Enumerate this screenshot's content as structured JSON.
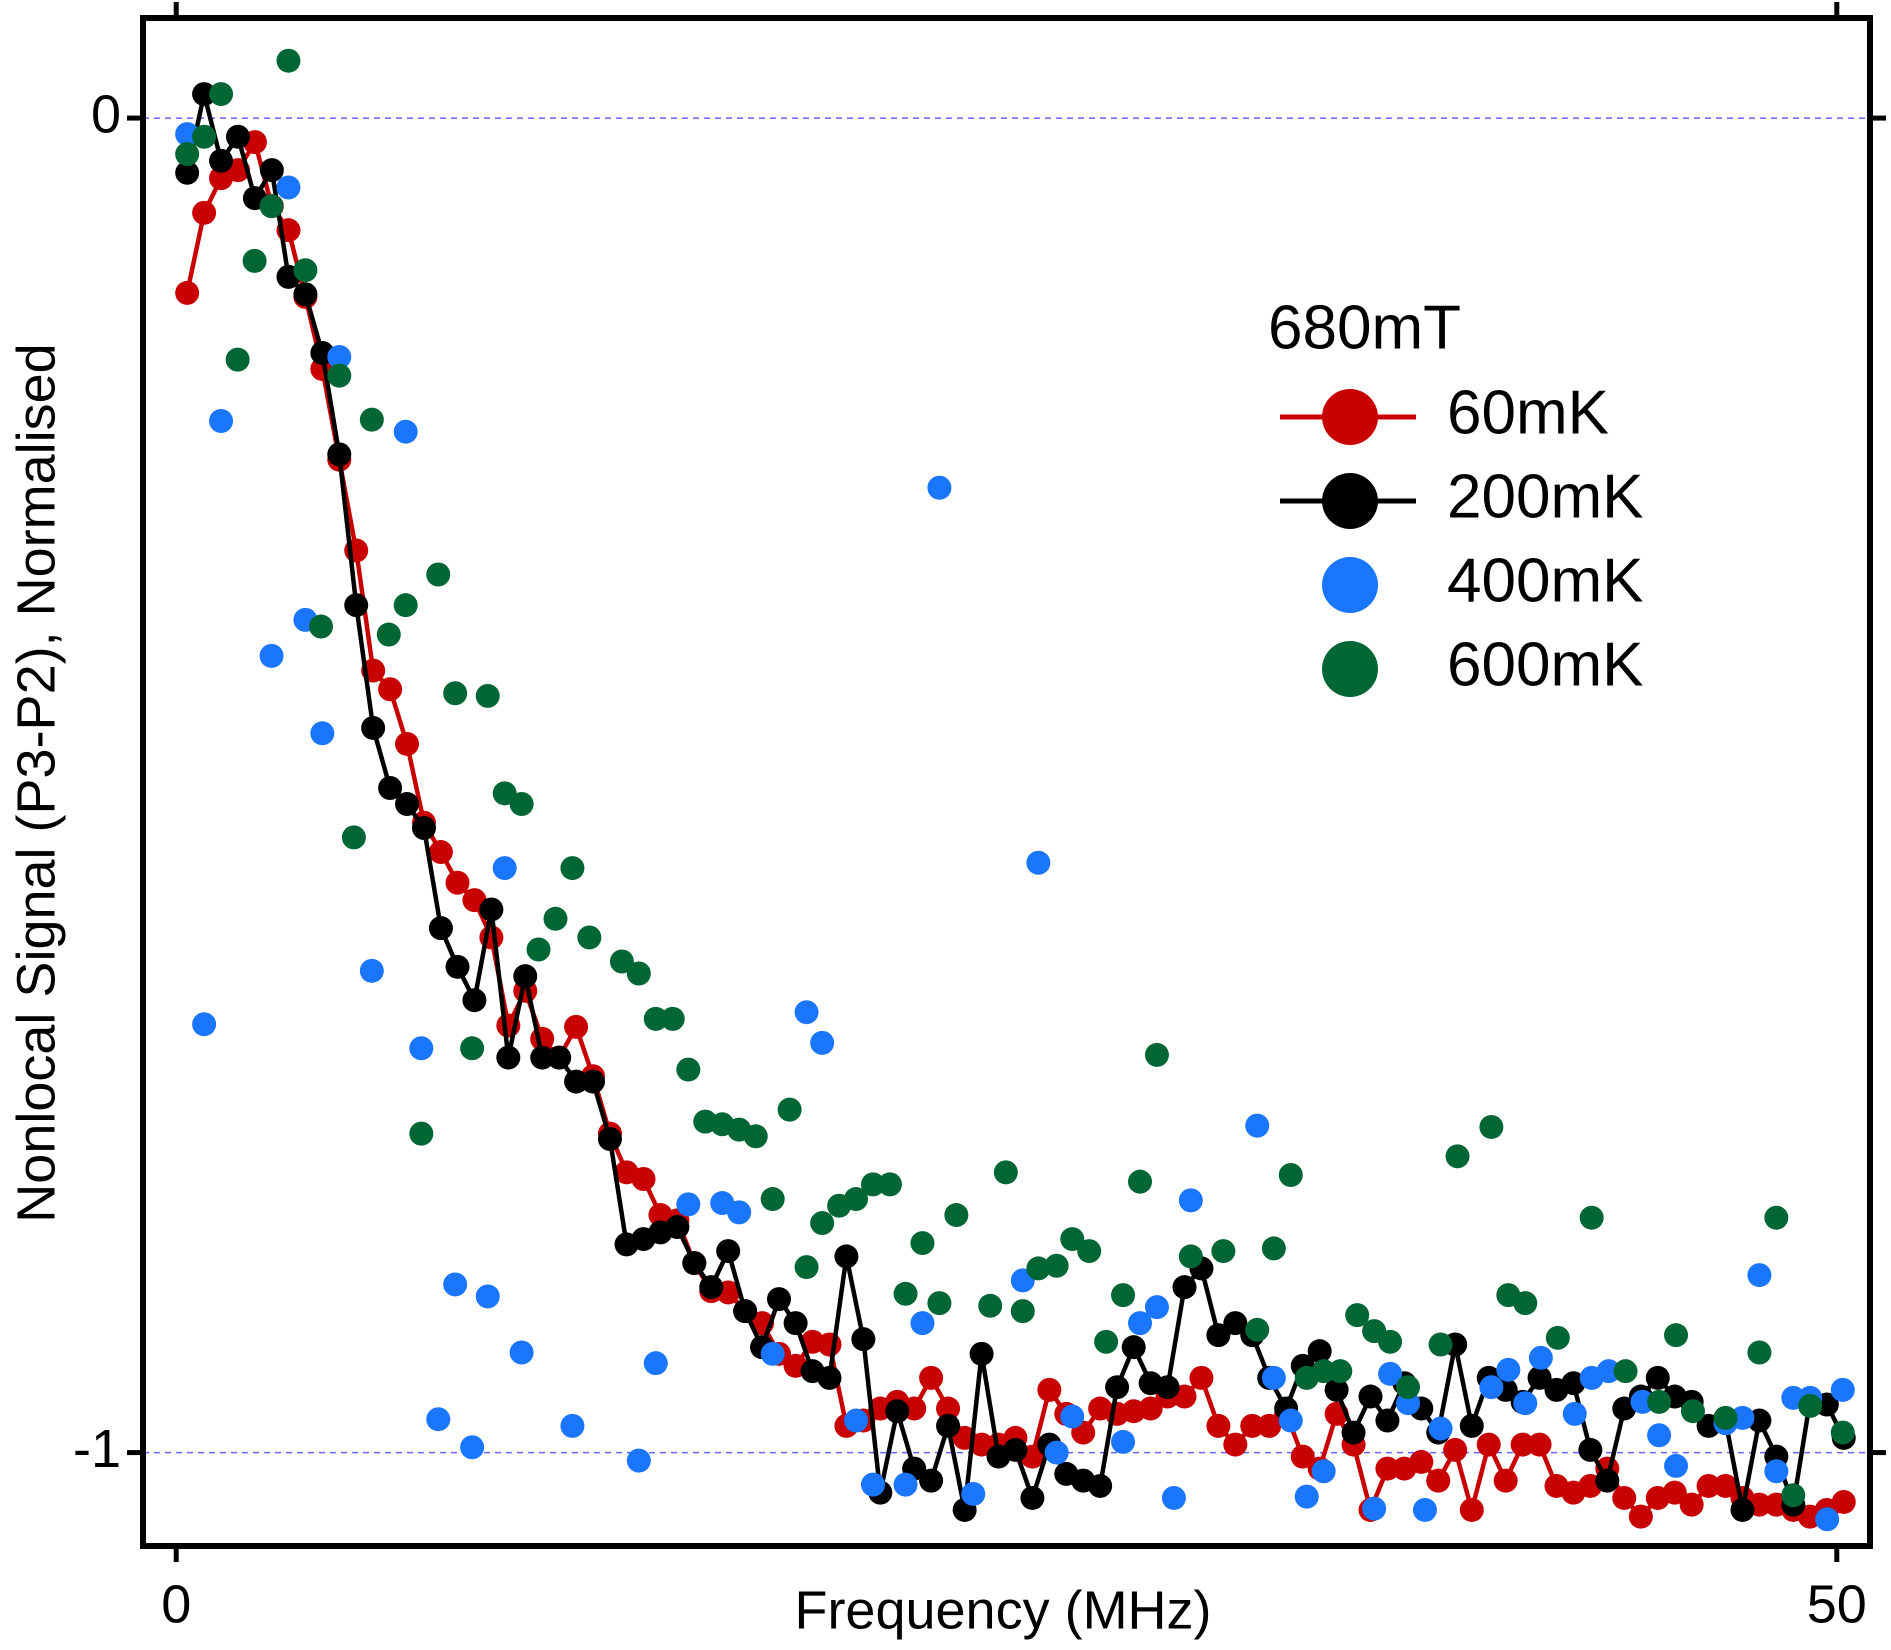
{
  "chart_data": {
    "type": "line",
    "xlabel": "Frequency (MHz)",
    "ylabel": "Nonlocal Signal (P3-P2), Normalised",
    "legend_title": "680mT",
    "legend_position": "upper right",
    "xlim": [
      -1,
      51
    ],
    "xticks": [
      0,
      50
    ],
    "ylim": [
      -1.07,
      0.075
    ],
    "yticks": [
      0,
      -1
    ],
    "grid": true,
    "series": [
      {
        "name": "60mK",
        "color": "#c80000",
        "mode": "lines+markers",
        "x": [
          0.33,
          0.84,
          1.35,
          1.86,
          2.37,
          2.88,
          3.38,
          3.89,
          4.4,
          4.91,
          5.42,
          5.93,
          6.44,
          6.95,
          7.46,
          7.97,
          8.47,
          8.98,
          9.49,
          10.0,
          10.51,
          11.02,
          11.53,
          12.04,
          12.55,
          13.06,
          13.56,
          14.07,
          14.58,
          15.09,
          15.6,
          16.11,
          16.62,
          17.13,
          17.64,
          18.15,
          18.65,
          19.16,
          19.67,
          20.18,
          20.69,
          21.2,
          21.71,
          22.22,
          22.73,
          23.24,
          23.74,
          24.25,
          24.76,
          25.27,
          25.78,
          26.29,
          26.8,
          27.31,
          27.82,
          28.33,
          28.83,
          29.34,
          29.85,
          30.36,
          30.87,
          31.38,
          31.89,
          32.4,
          32.91,
          33.42,
          33.92,
          34.43,
          34.94,
          35.45,
          35.96,
          36.47,
          36.98,
          37.49,
          38.0,
          38.51,
          39.01,
          39.52,
          40.03,
          40.54,
          41.05,
          41.56,
          42.07,
          42.58,
          43.09,
          43.6,
          44.1,
          44.61,
          45.12,
          45.63,
          46.14,
          46.65,
          47.16,
          47.67,
          48.18,
          48.69,
          49.19,
          49.7,
          50.21
        ],
        "values": [
          -0.131,
          -0.071,
          -0.045,
          -0.039,
          -0.018,
          -0.066,
          -0.084,
          -0.134,
          -0.188,
          -0.256,
          -0.324,
          -0.414,
          -0.428,
          -0.469,
          -0.528,
          -0.55,
          -0.573,
          -0.586,
          -0.614,
          -0.68,
          -0.654,
          -0.69,
          -0.704,
          -0.681,
          -0.718,
          -0.761,
          -0.79,
          -0.795,
          -0.822,
          -0.826,
          -0.858,
          -0.879,
          -0.88,
          -0.894,
          -0.903,
          -0.926,
          -0.935,
          -0.917,
          -0.919,
          -0.98,
          -0.976,
          -0.967,
          -0.962,
          -0.967,
          -0.944,
          -0.967,
          -0.989,
          -0.994,
          -0.994,
          -0.989,
          -1.003,
          -0.953,
          -0.971,
          -0.985,
          -0.967,
          -0.971,
          -0.969,
          -0.967,
          -0.958,
          -0.958,
          -0.944,
          -0.98,
          -0.994,
          -0.98,
          -0.98,
          -0.971,
          -1.003,
          -1.012,
          -0.971,
          -0.994,
          -1.043,
          -1.012,
          -1.012,
          -1.007,
          -1.021,
          -0.998,
          -1.043,
          -0.994,
          -1.021,
          -0.994,
          -0.994,
          -1.025,
          -1.03,
          -1.025,
          -1.012,
          -1.034,
          -1.048,
          -1.034,
          -1.03,
          -1.039,
          -1.025,
          -1.025,
          -1.034,
          -1.039,
          -1.039,
          -1.043,
          -1.048,
          -1.043,
          -1.037
        ]
      },
      {
        "name": "200mK",
        "color": "#000000",
        "mode": "lines+markers",
        "x": [
          0.33,
          0.84,
          1.35,
          1.86,
          2.37,
          2.88,
          3.38,
          3.89,
          4.4,
          4.91,
          5.42,
          5.93,
          6.44,
          6.95,
          7.46,
          7.97,
          8.47,
          8.98,
          9.49,
          10.0,
          10.51,
          11.02,
          11.53,
          12.04,
          12.55,
          13.06,
          13.56,
          14.07,
          14.58,
          15.09,
          15.6,
          16.11,
          16.62,
          17.13,
          17.64,
          18.15,
          18.65,
          19.16,
          19.67,
          20.18,
          20.69,
          21.2,
          21.71,
          22.22,
          22.73,
          23.24,
          23.74,
          24.25,
          24.76,
          25.27,
          25.78,
          26.29,
          26.8,
          27.31,
          27.82,
          28.33,
          28.83,
          29.34,
          29.85,
          30.36,
          30.87,
          31.38,
          31.89,
          32.4,
          32.91,
          33.42,
          33.92,
          34.43,
          34.94,
          35.45,
          35.96,
          36.47,
          36.98,
          37.49,
          38.0,
          38.51,
          39.01,
          39.52,
          40.03,
          40.54,
          41.05,
          41.56,
          42.07,
          42.58,
          43.09,
          43.6,
          44.1,
          44.61,
          45.12,
          45.63,
          46.14,
          46.65,
          47.16,
          47.67,
          48.18,
          48.69,
          49.19,
          49.7,
          50.21
        ],
        "values": [
          -0.041,
          0.018,
          -0.032,
          -0.014,
          -0.06,
          -0.039,
          -0.119,
          -0.132,
          -0.176,
          -0.252,
          -0.365,
          -0.457,
          -0.502,
          -0.514,
          -0.532,
          -0.607,
          -0.636,
          -0.661,
          -0.593,
          -0.704,
          -0.643,
          -0.704,
          -0.704,
          -0.722,
          -0.722,
          -0.765,
          -0.844,
          -0.84,
          -0.835,
          -0.831,
          -0.858,
          -0.876,
          -0.849,
          -0.894,
          -0.921,
          -0.885,
          -0.903,
          -0.939,
          -0.944,
          -0.853,
          -0.915,
          -1.03,
          -0.969,
          -1.012,
          -1.021,
          -0.98,
          -1.043,
          -0.926,
          -1.003,
          -0.998,
          -1.034,
          -0.994,
          -1.016,
          -1.021,
          -1.025,
          -0.951,
          -0.921,
          -0.948,
          -0.951,
          -0.876,
          -0.862,
          -0.912,
          -0.903,
          -0.912,
          -0.944,
          -0.967,
          -0.935,
          -0.924,
          -0.953,
          -0.985,
          -0.958,
          -0.976,
          -0.948,
          -0.967,
          -0.985,
          -0.919,
          -0.98,
          -0.944,
          -0.953,
          -0.962,
          -0.944,
          -0.953,
          -0.948,
          -0.998,
          -1.021,
          -0.967,
          -0.958,
          -0.944,
          -0.958,
          -0.962,
          -0.98,
          -0.976,
          -1.043,
          -0.976,
          -1.003,
          -1.039,
          -0.962,
          -0.964,
          -0.989
        ]
      },
      {
        "name": "400mK",
        "color": "#1a75ff",
        "mode": "markers",
        "x": [
          0.33,
          0.84,
          1.35,
          2.87,
          3.38,
          3.89,
          4.4,
          4.91,
          5.89,
          6.91,
          7.38,
          7.89,
          8.4,
          8.91,
          9.38,
          9.89,
          10.4,
          11.93,
          13.93,
          14.44,
          15.42,
          16.44,
          16.95,
          17.96,
          18.98,
          19.45,
          20.47,
          20.98,
          21.96,
          22.47,
          22.98,
          24.0,
          25.49,
          25.96,
          26.51,
          26.98,
          28.51,
          29.02,
          29.53,
          30.04,
          30.55,
          32.55,
          33.05,
          33.56,
          34.04,
          34.55,
          36.07,
          36.55,
          37.09,
          37.6,
          38.07,
          39.6,
          40.11,
          40.62,
          41.09,
          42.11,
          42.62,
          43.13,
          44.15,
          44.65,
          45.16,
          46.65,
          47.16,
          47.67,
          48.18,
          48.69,
          49.2,
          49.71,
          50.18
        ],
        "values": [
          -0.012,
          -0.679,
          -0.227,
          -0.403,
          -0.052,
          -0.376,
          -0.461,
          -0.179,
          -0.639,
          -0.235,
          -0.697,
          -0.975,
          -0.874,
          -0.996,
          -0.883,
          -0.562,
          -0.925,
          -0.98,
          -1.006,
          -0.933,
          -0.814,
          -0.813,
          -0.82,
          -0.926,
          -0.67,
          -0.693,
          -0.976,
          -1.024,
          -1.024,
          -0.903,
          -0.277,
          -1.031,
          -0.871,
          -0.558,
          -1.0,
          -0.973,
          -0.992,
          -0.903,
          -0.891,
          -1.034,
          -0.811,
          -0.755,
          -0.944,
          -0.976,
          -1.033,
          -1.014,
          -1.042,
          -0.941,
          -0.963,
          -1.043,
          -0.982,
          -0.951,
          -0.938,
          -0.963,
          -0.929,
          -0.971,
          -0.944,
          -0.939,
          -0.962,
          -0.987,
          -1.01,
          -0.978,
          -0.974,
          -0.867,
          -1.014,
          -0.959,
          -0.959,
          -1.05,
          -0.953
        ]
      },
      {
        "name": "600mK",
        "color": "#006633",
        "mode": "markers",
        "x": [
          0.33,
          0.84,
          1.35,
          1.85,
          2.36,
          2.87,
          3.38,
          3.89,
          4.36,
          4.91,
          5.35,
          5.89,
          6.4,
          6.91,
          7.38,
          7.89,
          8.4,
          8.91,
          9.38,
          9.89,
          10.4,
          10.91,
          11.42,
          11.93,
          12.44,
          13.42,
          13.93,
          14.44,
          14.95,
          15.42,
          15.93,
          16.44,
          16.95,
          17.45,
          17.96,
          18.47,
          18.98,
          19.45,
          19.96,
          20.47,
          20.98,
          21.49,
          21.96,
          22.47,
          22.98,
          23.49,
          24.51,
          24.98,
          25.49,
          25.96,
          26.51,
          26.98,
          27.49,
          28.0,
          28.51,
          29.02,
          29.53,
          30.55,
          31.53,
          32.55,
          33.05,
          33.56,
          34.04,
          34.55,
          35.05,
          35.56,
          36.07,
          36.55,
          37.09,
          38.07,
          38.58,
          39.6,
          40.11,
          40.62,
          41.6,
          42.62,
          43.64,
          44.65,
          45.16,
          45.67,
          46.65,
          47.67,
          48.18,
          48.69,
          49.2,
          50.18
        ],
        "values": [
          -0.027,
          -0.014,
          0.018,
          -0.181,
          -0.107,
          -0.066,
          0.043,
          -0.114,
          -0.381,
          -0.193,
          -0.539,
          -0.226,
          -0.387,
          -0.365,
          -0.761,
          -0.342,
          -0.431,
          -0.697,
          -0.433,
          -0.506,
          -0.514,
          -0.623,
          -0.6,
          -0.562,
          -0.614,
          -0.632,
          -0.641,
          -0.675,
          -0.675,
          -0.713,
          -0.752,
          -0.754,
          -0.758,
          -0.763,
          -0.81,
          -0.743,
          -0.861,
          -0.828,
          -0.815,
          -0.81,
          -0.799,
          -0.799,
          -0.881,
          -0.843,
          -0.888,
          -0.822,
          -0.89,
          -0.79,
          -0.894,
          -0.862,
          -0.86,
          -0.84,
          -0.849,
          -0.917,
          -0.882,
          -0.797,
          -0.702,
          -0.853,
          -0.849,
          -0.908,
          -0.847,
          -0.792,
          -0.944,
          -0.939,
          -0.939,
          -0.897,
          -0.909,
          -0.917,
          -0.951,
          -0.919,
          -0.778,
          -0.756,
          -0.882,
          -0.888,
          -0.914,
          -0.824,
          -0.939,
          -0.962,
          -0.912,
          -0.969,
          -0.974,
          -0.925,
          -0.824,
          -1.032,
          -0.965,
          -0.985
        ]
      }
    ]
  }
}
